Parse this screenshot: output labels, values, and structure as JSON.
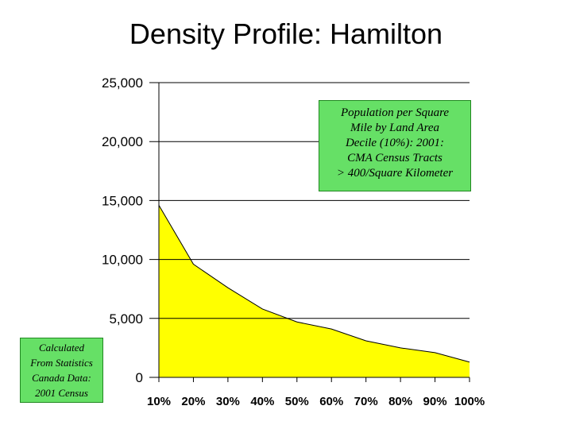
{
  "chart_data": {
    "type": "area",
    "title": "Density Profile: Hamilton",
    "categories": [
      "10%",
      "20%",
      "30%",
      "40%",
      "50%",
      "60%",
      "70%",
      "80%",
      "90%",
      "100%"
    ],
    "y_ticks": [
      "25,000",
      "20,000",
      "15,000",
      "10,000",
      "5,000",
      "0"
    ],
    "ylim": [
      0,
      25000
    ],
    "points": [
      {
        "x": 0,
        "y": 14600
      },
      {
        "x": 1,
        "y": 9600
      },
      {
        "x": 2,
        "y": 7600
      },
      {
        "x": 3,
        "y": 5800
      },
      {
        "x": 4,
        "y": 4700
      },
      {
        "x": 5,
        "y": 4100
      },
      {
        "x": 6,
        "y": 3100
      },
      {
        "x": 7,
        "y": 2500
      },
      {
        "x": 8,
        "y": 2100
      },
      {
        "x": 9,
        "y": 1300
      }
    ],
    "grid": "horizontal",
    "colors": {
      "fill": "#ffff00",
      "line": "#000000",
      "grid": "#000000"
    }
  },
  "legend_box": {
    "lines": [
      "Population per Square",
      "Mile  by Land Area",
      "Decile (10%): 2001:",
      "CMA Census Tracts",
      "> 400/Square Kilometer"
    ],
    "background": "#66e066"
  },
  "source_box": {
    "lines": [
      "Calculated",
      "From Statistics",
      "Canada Data:",
      "2001 Census"
    ],
    "background": "#66e066"
  }
}
